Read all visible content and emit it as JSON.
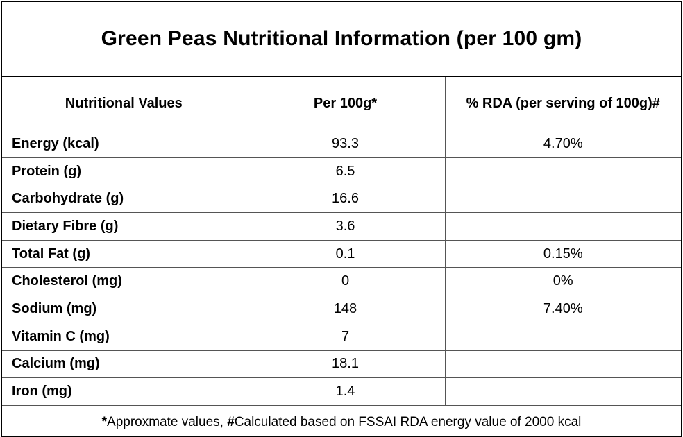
{
  "title": "Green Peas Nutritional Information (per 100 gm)",
  "table": {
    "headers": [
      "Nutritional Values",
      "Per 100g*",
      "% RDA (per serving of 100g)#"
    ],
    "rows": [
      {
        "name": "Energy (kcal)",
        "value": "93.3",
        "rda": "4.70%"
      },
      {
        "name": "Protein (g)",
        "value": "6.5",
        "rda": ""
      },
      {
        "name": "Carbohydrate (g)",
        "value": "16.6",
        "rda": ""
      },
      {
        "name": "Dietary Fibre (g)",
        "value": "3.6",
        "rda": ""
      },
      {
        "name": "Total Fat (g)",
        "value": "0.1",
        "rda": "0.15%"
      },
      {
        "name": "Cholesterol (mg)",
        "value": "0",
        "rda": "0%"
      },
      {
        "name": "Sodium (mg)",
        "value": "148",
        "rda": "7.40%"
      },
      {
        "name": "Vitamin C (mg)",
        "value": "7",
        "rda": ""
      },
      {
        "name": "Calcium (mg)",
        "value": "18.1",
        "rda": ""
      },
      {
        "name": "Iron (mg)",
        "value": "1.4",
        "rda": ""
      }
    ]
  },
  "footer": {
    "mark1": "*",
    "text1": "Approxmate values, ",
    "mark2": "#",
    "text2": "Calculated based on FSSAI RDA energy value of 2000 kcal"
  }
}
